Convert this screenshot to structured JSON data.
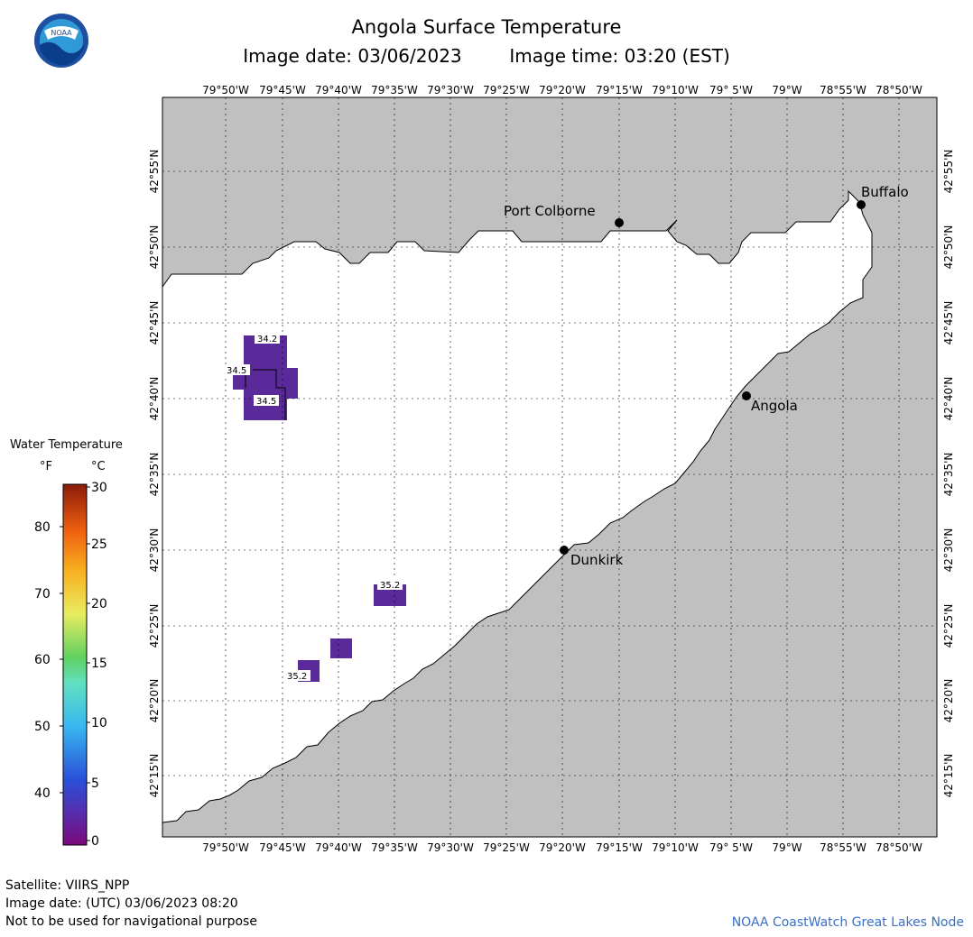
{
  "header": {
    "title": "Angola Surface Temperature",
    "image_date": "Image date: 03/06/2023",
    "image_time": "Image time: 03:20 (EST)"
  },
  "logo": {
    "text": "NOAA",
    "icon": "noaa-logo-icon"
  },
  "map": {
    "lon_labels": [
      "79°50'W",
      "79°45'W",
      "79°40'W",
      "79°35'W",
      "79°30'W",
      "79°25'W",
      "79°20'W",
      "79°15'W",
      "79°10'W",
      "79° 5'W",
      "79°W",
      "78°55'W",
      "78°50'W"
    ],
    "lat_labels": [
      "42°55'N",
      "42°50'N",
      "42°45'N",
      "42°40'N",
      "42°35'N",
      "42°30'N",
      "42°25'N",
      "42°20'N",
      "42°15'N"
    ],
    "cities": [
      "Port Colborne",
      "Buffalo",
      "Angola",
      "Dunkirk"
    ],
    "readings": [
      "34.2",
      "34.5",
      "34.5",
      "35.2",
      "35.2"
    ],
    "land_color": "#c0c0c0",
    "water_color": "#ffffff",
    "measurement_color": "#5b2a9a"
  },
  "legend": {
    "title": "Water Temperature",
    "unit_f": "°F",
    "unit_c": "°C",
    "f_ticks": [
      "80",
      "70",
      "60",
      "50",
      "40"
    ],
    "c_ticks": [
      "30",
      "25",
      "20",
      "15",
      "10",
      "5",
      "0"
    ]
  },
  "footer": {
    "satellite": "Satellite: VIIRS_NPP",
    "utc_date": "Image date: (UTC) 03/06/2023  08:20",
    "disclaimer": "Not to be used for navigational purpose",
    "credit": "NOAA CoastWatch Great Lakes Node"
  }
}
